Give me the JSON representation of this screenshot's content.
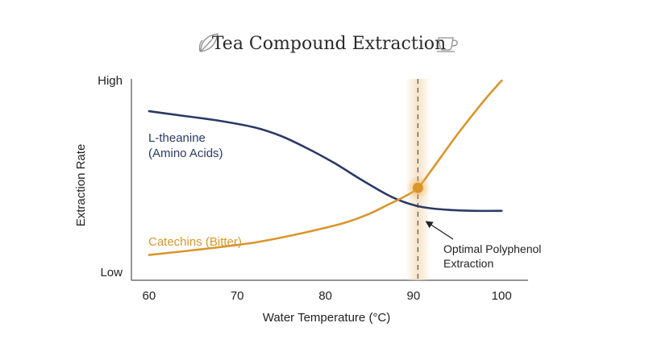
{
  "chart_data": {
    "type": "line",
    "title": "Tea Compound Extraction",
    "title_icons": [
      "leaf-icon",
      "teacup-icon"
    ],
    "xlabel": "Water Temperature (°C)",
    "ylabel": "Extraction Rate",
    "xlim": [
      58,
      103
    ],
    "ylim": [
      0,
      1
    ],
    "x_ticks": [
      60,
      70,
      80,
      90,
      100
    ],
    "y_tick_labels": [
      {
        "value": 1,
        "label": "High"
      },
      {
        "value": 0,
        "label": "Low"
      }
    ],
    "grid": false,
    "series": [
      {
        "name": "L-theanine\n(Amino Acids)",
        "label_lines": [
          "L-theanine",
          "(Amino Acids)"
        ],
        "color": "#2b3a64",
        "x": [
          60,
          64,
          68,
          72,
          75,
          78,
          81,
          84,
          87,
          89,
          91,
          94,
          97,
          100
        ],
        "y": [
          0.84,
          0.815,
          0.79,
          0.755,
          0.71,
          0.645,
          0.57,
          0.485,
          0.405,
          0.365,
          0.34,
          0.325,
          0.32,
          0.32
        ]
      },
      {
        "name": "Catechins (Bitter)",
        "label_lines": [
          "Catechins (Bitter)"
        ],
        "color": "#d9962b",
        "x": [
          60,
          66,
          72,
          77,
          82,
          85,
          87,
          89,
          90.5,
          92,
          95,
          98,
          100
        ],
        "y": [
          0.09,
          0.12,
          0.155,
          0.2,
          0.255,
          0.305,
          0.35,
          0.395,
          0.44,
          0.53,
          0.72,
          0.895,
          1.0
        ]
      }
    ],
    "highlight": {
      "x": 90.5,
      "point_y": 0.44,
      "color": "#d9962b",
      "annotation_lines": [
        "Optimal Polyphenol",
        "Extraction"
      ]
    }
  }
}
